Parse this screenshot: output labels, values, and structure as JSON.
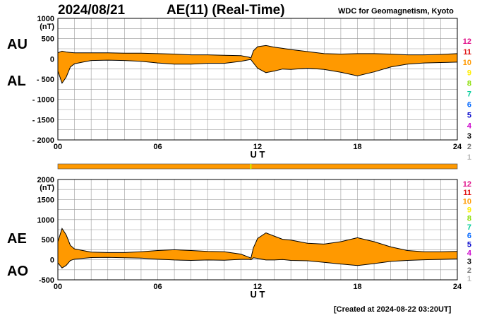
{
  "header": {
    "date": "2024/08/21",
    "title": "AE(11) (Real-Time)",
    "source": "WDC for Geomagnetism, Kyoto"
  },
  "footer": {
    "created": "[Created at 2024-08-22 03:20UT]"
  },
  "labels": {
    "au": "AU",
    "al": "AL",
    "ae": "AE",
    "ao": "AO"
  },
  "station_scale": {
    "labels": [
      "12",
      "11",
      "10",
      "9",
      "8",
      "7",
      "6",
      "5",
      "4",
      "3",
      "2",
      "1"
    ],
    "colors": [
      "#e0108a",
      "#e01010",
      "#ff9900",
      "#ffee00",
      "#88dd00",
      "#00cc99",
      "#0066ff",
      "#0000cc",
      "#cc00cc",
      "#000000",
      "#777777",
      "#bbbbbb"
    ]
  },
  "colors": {
    "fill": "#ff9900",
    "line": "#000000",
    "grid": "#999999",
    "marker": "#ccee00"
  },
  "chart_data": [
    {
      "type": "area",
      "name": "AU/AL",
      "ylabel": "(nT)",
      "xlabel": "U T",
      "xlim": [
        0,
        24
      ],
      "ylim": [
        -2000,
        1000
      ],
      "xticks": [
        "00",
        "06",
        "12",
        "18",
        "24"
      ],
      "yticks": [
        "1000",
        "500",
        "0",
        "- 500",
        "- 1000",
        "- 1500",
        "- 2000"
      ],
      "x": [
        0,
        0.25,
        0.5,
        0.75,
        1,
        1.5,
        2,
        3,
        4,
        5,
        6,
        7,
        8,
        9,
        10,
        11,
        11.5,
        11.6,
        11.75,
        12,
        12.5,
        13,
        13.5,
        14,
        15,
        16,
        17,
        18,
        19,
        20,
        21,
        22,
        23,
        24
      ],
      "series": [
        {
          "name": "AU",
          "values": [
            150,
            190,
            170,
            160,
            150,
            150,
            150,
            150,
            140,
            140,
            130,
            120,
            100,
            100,
            90,
            80,
            40,
            20,
            200,
            300,
            330,
            290,
            260,
            230,
            180,
            130,
            120,
            130,
            130,
            120,
            100,
            100,
            110,
            130
          ]
        },
        {
          "name": "AL",
          "values": [
            -300,
            -600,
            -450,
            -200,
            -120,
            -80,
            -40,
            -30,
            -40,
            -60,
            -100,
            -130,
            -130,
            -110,
            -110,
            -60,
            -20,
            -20,
            -100,
            -230,
            -340,
            -300,
            -250,
            -260,
            -230,
            -260,
            -330,
            -420,
            -320,
            -200,
            -130,
            -100,
            -90,
            -80
          ]
        }
      ]
    },
    {
      "type": "area",
      "name": "AE/AO",
      "ylabel": "(nT)",
      "xlabel": "U T",
      "xlim": [
        0,
        24
      ],
      "ylim": [
        -500,
        2000
      ],
      "xticks": [
        "00",
        "06",
        "12",
        "18",
        "24"
      ],
      "yticks": [
        "2000",
        "1500",
        "1000",
        "500",
        "0",
        "-500"
      ],
      "x": [
        0,
        0.25,
        0.5,
        0.75,
        1,
        1.5,
        2,
        3,
        4,
        5,
        6,
        7,
        8,
        9,
        10,
        11,
        11.5,
        11.6,
        11.75,
        12,
        12.5,
        13,
        13.5,
        14,
        15,
        16,
        17,
        18,
        19,
        20,
        21,
        22,
        23,
        24
      ],
      "series": [
        {
          "name": "AE",
          "values": [
            450,
            780,
            620,
            360,
            270,
            230,
            190,
            180,
            180,
            200,
            230,
            250,
            230,
            210,
            200,
            140,
            60,
            40,
            300,
            530,
            670,
            590,
            510,
            490,
            410,
            390,
            450,
            550,
            450,
            320,
            230,
            200,
            200,
            210
          ]
        },
        {
          "name": "AO",
          "values": [
            -75,
            -205,
            -140,
            -20,
            15,
            35,
            55,
            60,
            50,
            40,
            15,
            -5,
            -15,
            -5,
            -10,
            10,
            10,
            0,
            50,
            35,
            -5,
            -5,
            5,
            -15,
            -25,
            -65,
            -105,
            -145,
            -95,
            -40,
            -15,
            0,
            10,
            25
          ]
        }
      ]
    }
  ]
}
